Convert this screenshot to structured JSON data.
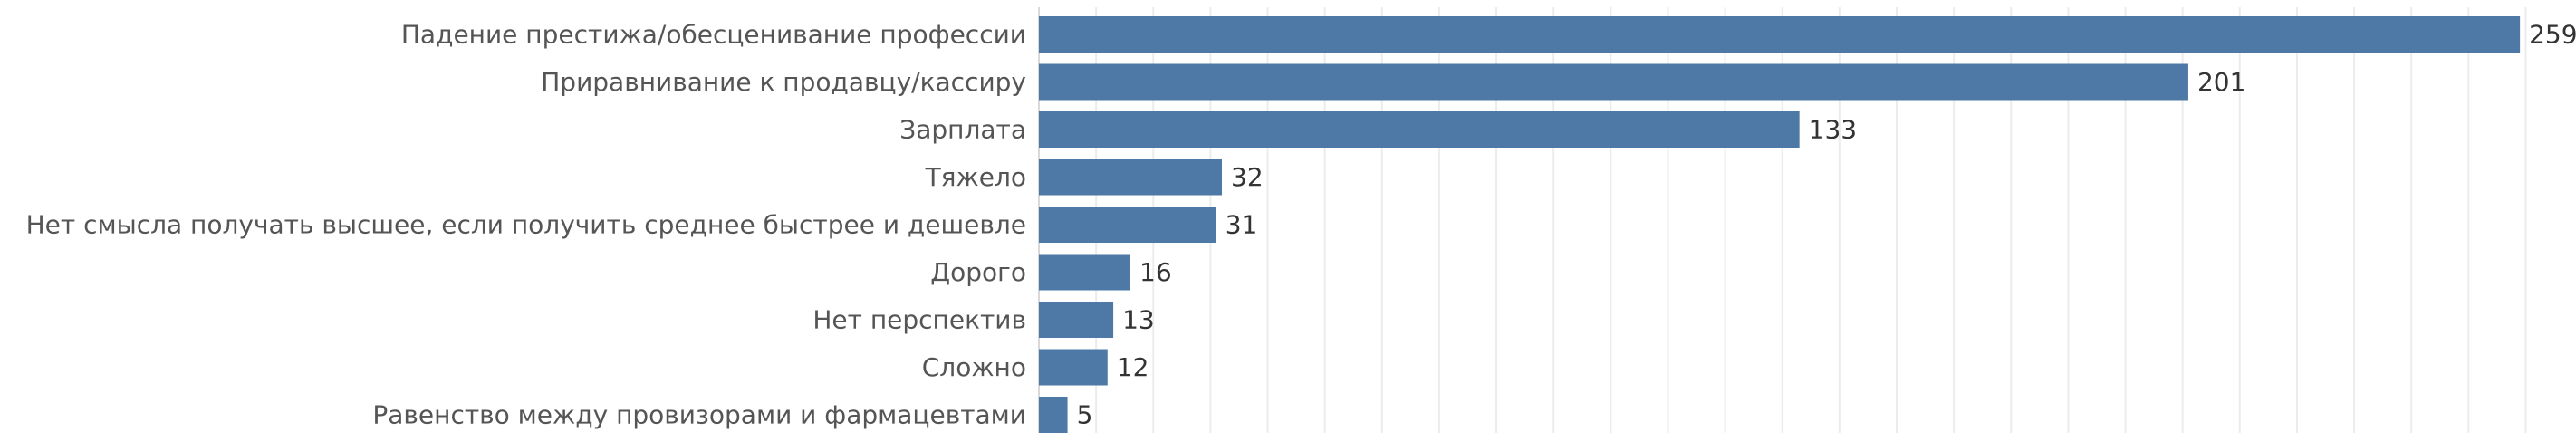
{
  "chart_data": {
    "type": "bar",
    "orientation": "horizontal",
    "categories": [
      "Падение престижа/обесценивание профессии",
      "Приравнивание к продавцу/кассиру",
      "Зарплата",
      "Тяжело",
      "Нет смысла получать высшее, если получить среднее быстрее и дешевле",
      "Дорого",
      "Нет перспектив",
      "Сложно",
      "Равенство между провизорами и фармацевтами"
    ],
    "values": [
      259,
      201,
      133,
      32,
      31,
      16,
      13,
      12,
      5
    ],
    "xlim": [
      0,
      265
    ],
    "grid": true,
    "bar_color": "#4e79a7",
    "data_labels": true
  }
}
